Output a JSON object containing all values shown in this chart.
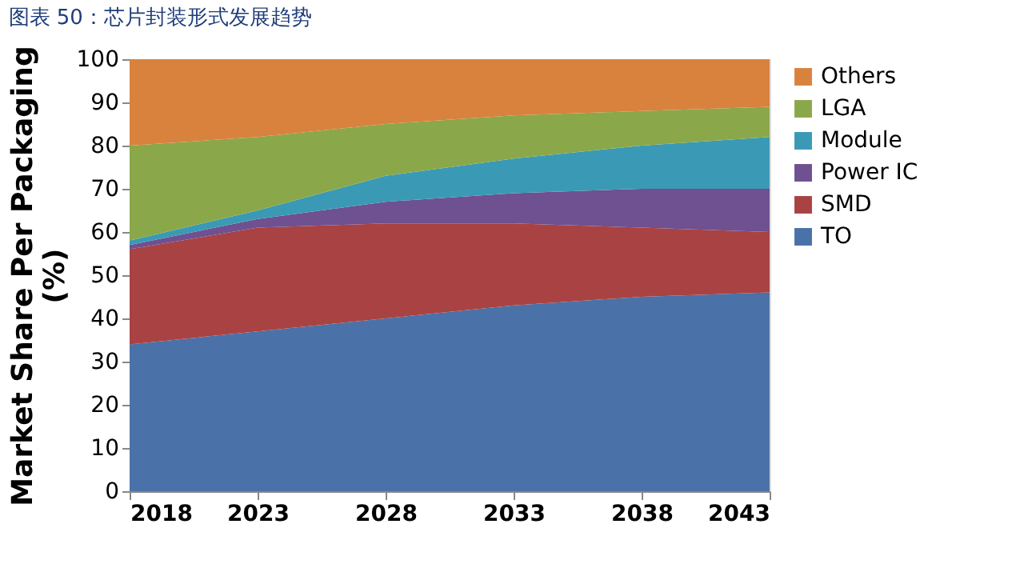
{
  "chart_data": {
    "type": "area",
    "stacked": true,
    "title": "图表 50：芯片封装形式发展趋势",
    "ylabel": "Market Share Per Packaging (%)",
    "x": [
      2018,
      2023,
      2028,
      2033,
      2038,
      2043
    ],
    "xlim": [
      2018,
      2043
    ],
    "xticks": [
      2018,
      2023,
      2028,
      2033,
      2038,
      2043
    ],
    "ylim": [
      0,
      100
    ],
    "yticks": [
      0,
      10,
      20,
      30,
      40,
      50,
      60,
      70,
      80,
      90,
      100
    ],
    "grid": false,
    "legend": "right",
    "series": [
      {
        "name": "TO",
        "color": "#4a72a8",
        "values": [
          34,
          37,
          40,
          43,
          45,
          46
        ]
      },
      {
        "name": "SMD",
        "color": "#a94343",
        "values": [
          22,
          24,
          22,
          19,
          16,
          14
        ]
      },
      {
        "name": "Power IC",
        "color": "#6f5090",
        "values": [
          1,
          2,
          5,
          7,
          9,
          10
        ]
      },
      {
        "name": "Module",
        "color": "#3a9ab5",
        "values": [
          1,
          2,
          6,
          8,
          10,
          12
        ]
      },
      {
        "name": "LGA",
        "color": "#8aa84a",
        "values": [
          22,
          17,
          12,
          10,
          8,
          7
        ]
      },
      {
        "name": "Others",
        "color": "#d9823e",
        "values": [
          20,
          18,
          15,
          13,
          12,
          11
        ]
      }
    ]
  }
}
